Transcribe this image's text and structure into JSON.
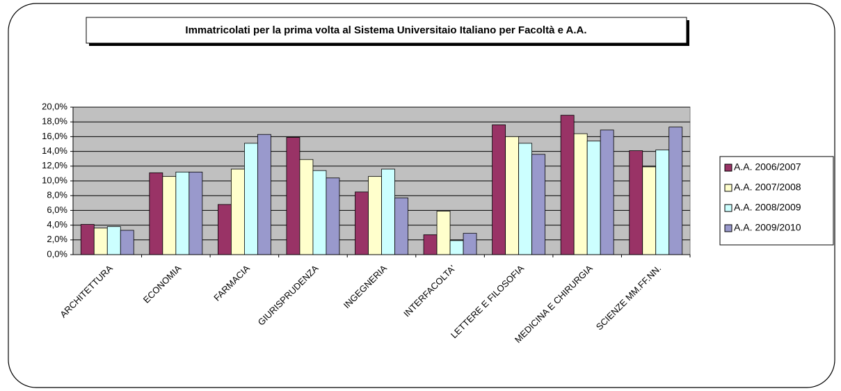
{
  "chart_data": {
    "type": "bar",
    "title": "Immatricolati per la prima volta al Sistema Universitaio Italiano per Facoltà e A.A.",
    "categories": [
      "ARCHITETTURA",
      "ECONOMIA",
      "FARMACIA",
      "GIURISPRUDENZA",
      "INGEGNERIA",
      "INTERFACOLTA'",
      "LETTERE E FILOSOFIA",
      "MEDICINA E CHIRURGIA",
      "SCIENZE MM.FF.NN."
    ],
    "series": [
      {
        "name": "A.A. 2006/2007",
        "color": "#993366",
        "values": [
          4.1,
          11.1,
          6.8,
          15.9,
          8.5,
          2.7,
          17.6,
          18.9,
          14.1
        ]
      },
      {
        "name": "A.A. 2007/2008",
        "color": "#ffffcc",
        "values": [
          3.6,
          10.6,
          11.6,
          12.9,
          10.6,
          5.9,
          16.0,
          16.4,
          11.9
        ]
      },
      {
        "name": "A.A. 2008/2009",
        "color": "#ccffff",
        "values": [
          3.8,
          11.2,
          15.1,
          11.4,
          11.6,
          1.9,
          15.1,
          15.4,
          14.2
        ]
      },
      {
        "name": "A.A. 2009/2010",
        "color": "#9999cc",
        "values": [
          3.3,
          11.2,
          16.3,
          10.4,
          7.7,
          2.9,
          13.6,
          16.9,
          17.3
        ]
      }
    ],
    "ylim": [
      0,
      20
    ],
    "yticks": [
      {
        "value": 0,
        "label": "0,0%"
      },
      {
        "value": 2,
        "label": "2,0%"
      },
      {
        "value": 4,
        "label": "4,0%"
      },
      {
        "value": 6,
        "label": "6,0%"
      },
      {
        "value": 8,
        "label": "8,0%"
      },
      {
        "value": 10,
        "label": "10,0%"
      },
      {
        "value": 12,
        "label": "12,0%"
      },
      {
        "value": 14,
        "label": "14,0%"
      },
      {
        "value": 16,
        "label": "16,0%"
      },
      {
        "value": 18,
        "label": "18,0%"
      },
      {
        "value": 20,
        "label": "20,0%"
      }
    ],
    "grid": true,
    "plot_background": "#c0c0c0",
    "legend": "right"
  }
}
